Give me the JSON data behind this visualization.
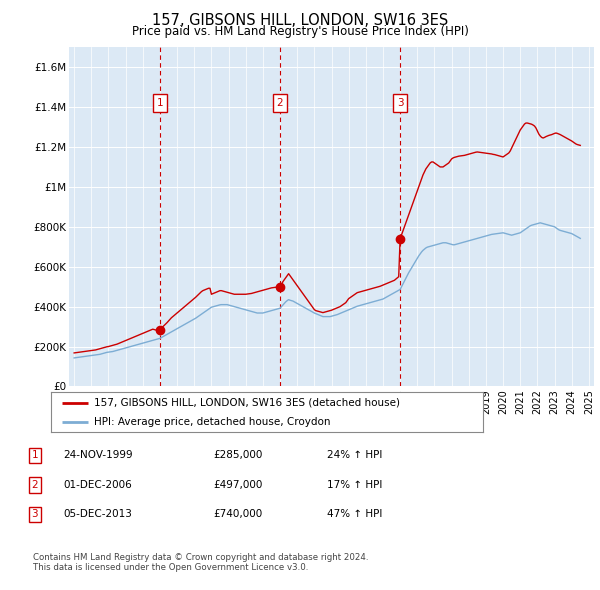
{
  "title": "157, GIBSONS HILL, LONDON, SW16 3ES",
  "subtitle": "Price paid vs. HM Land Registry's House Price Index (HPI)",
  "legend_line1": "157, GIBSONS HILL, LONDON, SW16 3ES (detached house)",
  "legend_line2": "HPI: Average price, detached house, Croydon",
  "footer1": "Contains HM Land Registry data © Crown copyright and database right 2024.",
  "footer2": "This data is licensed under the Open Government Licence v3.0.",
  "red_color": "#cc0000",
  "blue_color": "#7dadd4",
  "plot_bg": "#dce9f5",
  "grid_color": "#ffffff",
  "fig_bg": "#ffffff",
  "ylim": [
    0,
    1700000
  ],
  "yticks": [
    0,
    200000,
    400000,
    600000,
    800000,
    1000000,
    1200000,
    1400000,
    1600000
  ],
  "ytick_labels": [
    "£0",
    "£200K",
    "£400K",
    "£600K",
    "£800K",
    "£1M",
    "£1.2M",
    "£1.4M",
    "£1.6M"
  ],
  "purchases": [
    {
      "label": "1",
      "year": 2000.0,
      "value": 285000
    },
    {
      "label": "2",
      "year": 2007.0,
      "value": 497000
    },
    {
      "label": "3",
      "year": 2014.0,
      "value": 740000
    }
  ],
  "table_rows": [
    {
      "num": "1",
      "date": "24-NOV-1999",
      "price": "£285,000",
      "hpi": "24% ↑ HPI"
    },
    {
      "num": "2",
      "date": "01-DEC-2006",
      "price": "£497,000",
      "hpi": "17% ↑ HPI"
    },
    {
      "num": "3",
      "date": "05-DEC-2013",
      "price": "£740,000",
      "hpi": "47% ↑ HPI"
    }
  ],
  "red_x": [
    1995.0,
    1995.083,
    1995.167,
    1995.25,
    1995.333,
    1995.417,
    1995.5,
    1995.583,
    1995.667,
    1995.75,
    1995.833,
    1995.917,
    1996.0,
    1996.083,
    1996.167,
    1996.25,
    1996.333,
    1996.417,
    1996.5,
    1996.583,
    1996.667,
    1996.75,
    1996.833,
    1996.917,
    1997.0,
    1997.083,
    1997.167,
    1997.25,
    1997.333,
    1997.417,
    1997.5,
    1997.583,
    1997.667,
    1997.75,
    1997.833,
    1997.917,
    1998.0,
    1998.083,
    1998.167,
    1998.25,
    1998.333,
    1998.417,
    1998.5,
    1998.583,
    1998.667,
    1998.75,
    1998.833,
    1998.917,
    1999.0,
    1999.083,
    1999.167,
    1999.25,
    1999.333,
    1999.417,
    1999.5,
    1999.583,
    1999.667,
    1999.75,
    1999.833,
    1999.917,
    2000.0,
    2000.083,
    2000.167,
    2000.25,
    2000.333,
    2000.417,
    2000.5,
    2000.583,
    2000.667,
    2000.75,
    2000.833,
    2000.917,
    2001.0,
    2001.083,
    2001.167,
    2001.25,
    2001.333,
    2001.417,
    2001.5,
    2001.583,
    2001.667,
    2001.75,
    2001.833,
    2001.917,
    2002.0,
    2002.083,
    2002.167,
    2002.25,
    2002.333,
    2002.417,
    2002.5,
    2002.583,
    2002.667,
    2002.75,
    2002.833,
    2002.917,
    2003.0,
    2003.083,
    2003.167,
    2003.25,
    2003.333,
    2003.417,
    2003.5,
    2003.583,
    2003.667,
    2003.75,
    2003.833,
    2003.917,
    2004.0,
    2004.083,
    2004.167,
    2004.25,
    2004.333,
    2004.417,
    2004.5,
    2004.583,
    2004.667,
    2004.75,
    2004.833,
    2004.917,
    2005.0,
    2005.083,
    2005.167,
    2005.25,
    2005.333,
    2005.417,
    2005.5,
    2005.583,
    2005.667,
    2005.75,
    2005.833,
    2005.917,
    2006.0,
    2006.083,
    2006.167,
    2006.25,
    2006.333,
    2006.417,
    2006.5,
    2006.583,
    2006.667,
    2006.75,
    2006.833,
    2006.917,
    2007.0,
    2007.083,
    2007.167,
    2007.25,
    2007.333,
    2007.417,
    2007.5,
    2007.583,
    2007.667,
    2007.75,
    2007.833,
    2007.917,
    2008.0,
    2008.083,
    2008.167,
    2008.25,
    2008.333,
    2008.417,
    2008.5,
    2008.583,
    2008.667,
    2008.75,
    2008.833,
    2008.917,
    2009.0,
    2009.083,
    2009.167,
    2009.25,
    2009.333,
    2009.417,
    2009.5,
    2009.583,
    2009.667,
    2009.75,
    2009.833,
    2009.917,
    2010.0,
    2010.083,
    2010.167,
    2010.25,
    2010.333,
    2010.417,
    2010.5,
    2010.583,
    2010.667,
    2010.75,
    2010.833,
    2010.917,
    2011.0,
    2011.083,
    2011.167,
    2011.25,
    2011.333,
    2011.417,
    2011.5,
    2011.583,
    2011.667,
    2011.75,
    2011.833,
    2011.917,
    2012.0,
    2012.083,
    2012.167,
    2012.25,
    2012.333,
    2012.417,
    2012.5,
    2012.583,
    2012.667,
    2012.75,
    2012.833,
    2012.917,
    2013.0,
    2013.083,
    2013.167,
    2013.25,
    2013.333,
    2013.417,
    2013.5,
    2013.583,
    2013.667,
    2013.75,
    2013.833,
    2013.917,
    2014.0,
    2014.083,
    2014.167,
    2014.25,
    2014.333,
    2014.417,
    2014.5,
    2014.583,
    2014.667,
    2014.75,
    2014.833,
    2014.917,
    2015.0,
    2015.083,
    2015.167,
    2015.25,
    2015.333,
    2015.417,
    2015.5,
    2015.583,
    2015.667,
    2015.75,
    2015.833,
    2015.917,
    2016.0,
    2016.083,
    2016.167,
    2016.25,
    2016.333,
    2016.417,
    2016.5,
    2016.583,
    2016.667,
    2016.75,
    2016.833,
    2016.917,
    2017.0,
    2017.083,
    2017.167,
    2017.25,
    2017.333,
    2017.417,
    2017.5,
    2017.583,
    2017.667,
    2017.75,
    2017.833,
    2017.917,
    2018.0,
    2018.083,
    2018.167,
    2018.25,
    2018.333,
    2018.417,
    2018.5,
    2018.583,
    2018.667,
    2018.75,
    2018.833,
    2018.917,
    2019.0,
    2019.083,
    2019.167,
    2019.25,
    2019.333,
    2019.417,
    2019.5,
    2019.583,
    2019.667,
    2019.75,
    2019.833,
    2019.917,
    2020.0,
    2020.083,
    2020.167,
    2020.25,
    2020.333,
    2020.417,
    2020.5,
    2020.583,
    2020.667,
    2020.75,
    2020.833,
    2020.917,
    2021.0,
    2021.083,
    2021.167,
    2021.25,
    2021.333,
    2021.417,
    2021.5,
    2021.583,
    2021.667,
    2021.75,
    2021.833,
    2021.917,
    2022.0,
    2022.083,
    2022.167,
    2022.25,
    2022.333,
    2022.417,
    2022.5,
    2022.583,
    2022.667,
    2022.75,
    2022.833,
    2022.917,
    2023.0,
    2023.083,
    2023.167,
    2023.25,
    2023.333,
    2023.417,
    2023.5,
    2023.583,
    2023.667,
    2023.75,
    2023.833,
    2023.917,
    2024.0,
    2024.083,
    2024.167,
    2024.25,
    2024.333,
    2024.417,
    2024.5
  ],
  "red_y": [
    168000,
    169000,
    170000,
    171000,
    172000,
    173000,
    174000,
    175000,
    176000,
    177000,
    178000,
    179000,
    180000,
    181000,
    182000,
    183000,
    185000,
    187000,
    189000,
    191000,
    193000,
    195000,
    197000,
    199000,
    200000,
    202000,
    204000,
    206000,
    208000,
    210000,
    212000,
    215000,
    218000,
    221000,
    224000,
    227000,
    230000,
    233000,
    236000,
    239000,
    242000,
    245000,
    248000,
    251000,
    254000,
    257000,
    260000,
    263000,
    266000,
    269000,
    272000,
    275000,
    278000,
    281000,
    284000,
    287000,
    285000,
    283000,
    281000,
    279000,
    285000,
    292000,
    299000,
    306000,
    313000,
    320000,
    328000,
    336000,
    344000,
    350000,
    356000,
    362000,
    368000,
    374000,
    380000,
    386000,
    392000,
    398000,
    404000,
    410000,
    416000,
    422000,
    428000,
    434000,
    440000,
    447000,
    454000,
    461000,
    468000,
    475000,
    480000,
    483000,
    486000,
    489000,
    492000,
    492000,
    462000,
    465000,
    468000,
    471000,
    474000,
    477000,
    480000,
    480000,
    478000,
    476000,
    474000,
    472000,
    470000,
    468000,
    466000,
    464000,
    462000,
    462000,
    462000,
    462000,
    462000,
    462000,
    462000,
    462000,
    462000,
    463000,
    464000,
    465000,
    466000,
    468000,
    470000,
    472000,
    474000,
    476000,
    478000,
    480000,
    482000,
    484000,
    486000,
    488000,
    490000,
    492000,
    494000,
    495000,
    496000,
    497000,
    498000,
    499000,
    497000,
    510000,
    525000,
    535000,
    545000,
    555000,
    565000,
    555000,
    545000,
    535000,
    525000,
    515000,
    505000,
    495000,
    485000,
    475000,
    465000,
    455000,
    445000,
    435000,
    425000,
    415000,
    405000,
    395000,
    385000,
    380000,
    378000,
    376000,
    374000,
    372000,
    370000,
    372000,
    374000,
    376000,
    378000,
    380000,
    382000,
    385000,
    388000,
    391000,
    394000,
    397000,
    400000,
    405000,
    410000,
    415000,
    420000,
    430000,
    440000,
    445000,
    450000,
    455000,
    460000,
    465000,
    470000,
    472000,
    474000,
    476000,
    478000,
    480000,
    482000,
    484000,
    486000,
    488000,
    490000,
    492000,
    494000,
    496000,
    498000,
    500000,
    502000,
    505000,
    508000,
    511000,
    514000,
    517000,
    520000,
    523000,
    526000,
    529000,
    532000,
    538000,
    544000,
    550000,
    740000,
    760000,
    780000,
    800000,
    820000,
    840000,
    860000,
    880000,
    900000,
    920000,
    940000,
    960000,
    980000,
    1000000,
    1020000,
    1040000,
    1060000,
    1075000,
    1090000,
    1100000,
    1110000,
    1120000,
    1125000,
    1125000,
    1120000,
    1115000,
    1110000,
    1105000,
    1100000,
    1100000,
    1100000,
    1105000,
    1110000,
    1115000,
    1120000,
    1130000,
    1140000,
    1145000,
    1148000,
    1150000,
    1152000,
    1154000,
    1155000,
    1156000,
    1157000,
    1158000,
    1160000,
    1162000,
    1164000,
    1166000,
    1168000,
    1170000,
    1172000,
    1174000,
    1175000,
    1174000,
    1173000,
    1172000,
    1171000,
    1170000,
    1169000,
    1168000,
    1167000,
    1166000,
    1165000,
    1163000,
    1162000,
    1160000,
    1158000,
    1156000,
    1154000,
    1152000,
    1150000,
    1155000,
    1160000,
    1165000,
    1170000,
    1180000,
    1195000,
    1210000,
    1225000,
    1240000,
    1255000,
    1270000,
    1285000,
    1295000,
    1305000,
    1315000,
    1320000,
    1320000,
    1318000,
    1316000,
    1314000,
    1310000,
    1305000,
    1295000,
    1280000,
    1265000,
    1255000,
    1248000,
    1245000,
    1248000,
    1252000,
    1255000,
    1258000,
    1260000,
    1262000,
    1265000,
    1268000,
    1270000,
    1268000,
    1265000,
    1262000,
    1258000,
    1254000,
    1250000,
    1246000,
    1242000,
    1238000,
    1234000,
    1230000,
    1225000,
    1220000,
    1215000,
    1212000,
    1210000,
    1208000
  ],
  "blue_x": [
    1995.0,
    1995.083,
    1995.167,
    1995.25,
    1995.333,
    1995.417,
    1995.5,
    1995.583,
    1995.667,
    1995.75,
    1995.833,
    1995.917,
    1996.0,
    1996.083,
    1996.167,
    1996.25,
    1996.333,
    1996.417,
    1996.5,
    1996.583,
    1996.667,
    1996.75,
    1996.833,
    1996.917,
    1997.0,
    1997.083,
    1997.167,
    1997.25,
    1997.333,
    1997.417,
    1997.5,
    1997.583,
    1997.667,
    1997.75,
    1997.833,
    1997.917,
    1998.0,
    1998.083,
    1998.167,
    1998.25,
    1998.333,
    1998.417,
    1998.5,
    1998.583,
    1998.667,
    1998.75,
    1998.833,
    1998.917,
    1999.0,
    1999.083,
    1999.167,
    1999.25,
    1999.333,
    1999.417,
    1999.5,
    1999.583,
    1999.667,
    1999.75,
    1999.833,
    1999.917,
    2000.0,
    2000.083,
    2000.167,
    2000.25,
    2000.333,
    2000.417,
    2000.5,
    2000.583,
    2000.667,
    2000.75,
    2000.833,
    2000.917,
    2001.0,
    2001.083,
    2001.167,
    2001.25,
    2001.333,
    2001.417,
    2001.5,
    2001.583,
    2001.667,
    2001.75,
    2001.833,
    2001.917,
    2002.0,
    2002.083,
    2002.167,
    2002.25,
    2002.333,
    2002.417,
    2002.5,
    2002.583,
    2002.667,
    2002.75,
    2002.833,
    2002.917,
    2003.0,
    2003.083,
    2003.167,
    2003.25,
    2003.333,
    2003.417,
    2003.5,
    2003.583,
    2003.667,
    2003.75,
    2003.833,
    2003.917,
    2004.0,
    2004.083,
    2004.167,
    2004.25,
    2004.333,
    2004.417,
    2004.5,
    2004.583,
    2004.667,
    2004.75,
    2004.833,
    2004.917,
    2005.0,
    2005.083,
    2005.167,
    2005.25,
    2005.333,
    2005.417,
    2005.5,
    2005.583,
    2005.667,
    2005.75,
    2005.833,
    2005.917,
    2006.0,
    2006.083,
    2006.167,
    2006.25,
    2006.333,
    2006.417,
    2006.5,
    2006.583,
    2006.667,
    2006.75,
    2006.833,
    2006.917,
    2007.0,
    2007.083,
    2007.167,
    2007.25,
    2007.333,
    2007.417,
    2007.5,
    2007.583,
    2007.667,
    2007.75,
    2007.833,
    2007.917,
    2008.0,
    2008.083,
    2008.167,
    2008.25,
    2008.333,
    2008.417,
    2008.5,
    2008.583,
    2008.667,
    2008.75,
    2008.833,
    2008.917,
    2009.0,
    2009.083,
    2009.167,
    2009.25,
    2009.333,
    2009.417,
    2009.5,
    2009.583,
    2009.667,
    2009.75,
    2009.833,
    2009.917,
    2010.0,
    2010.083,
    2010.167,
    2010.25,
    2010.333,
    2010.417,
    2010.5,
    2010.583,
    2010.667,
    2010.75,
    2010.833,
    2010.917,
    2011.0,
    2011.083,
    2011.167,
    2011.25,
    2011.333,
    2011.417,
    2011.5,
    2011.583,
    2011.667,
    2011.75,
    2011.833,
    2011.917,
    2012.0,
    2012.083,
    2012.167,
    2012.25,
    2012.333,
    2012.417,
    2012.5,
    2012.583,
    2012.667,
    2012.75,
    2012.833,
    2012.917,
    2013.0,
    2013.083,
    2013.167,
    2013.25,
    2013.333,
    2013.417,
    2013.5,
    2013.583,
    2013.667,
    2013.75,
    2013.833,
    2013.917,
    2014.0,
    2014.083,
    2014.167,
    2014.25,
    2014.333,
    2014.417,
    2014.5,
    2014.583,
    2014.667,
    2014.75,
    2014.833,
    2014.917,
    2015.0,
    2015.083,
    2015.167,
    2015.25,
    2015.333,
    2015.417,
    2015.5,
    2015.583,
    2015.667,
    2015.75,
    2015.833,
    2015.917,
    2016.0,
    2016.083,
    2016.167,
    2016.25,
    2016.333,
    2016.417,
    2016.5,
    2016.583,
    2016.667,
    2016.75,
    2016.833,
    2016.917,
    2017.0,
    2017.083,
    2017.167,
    2017.25,
    2017.333,
    2017.417,
    2017.5,
    2017.583,
    2017.667,
    2017.75,
    2017.833,
    2017.917,
    2018.0,
    2018.083,
    2018.167,
    2018.25,
    2018.333,
    2018.417,
    2018.5,
    2018.583,
    2018.667,
    2018.75,
    2018.833,
    2018.917,
    2019.0,
    2019.083,
    2019.167,
    2019.25,
    2019.333,
    2019.417,
    2019.5,
    2019.583,
    2019.667,
    2019.75,
    2019.833,
    2019.917,
    2020.0,
    2020.083,
    2020.167,
    2020.25,
    2020.333,
    2020.417,
    2020.5,
    2020.583,
    2020.667,
    2020.75,
    2020.833,
    2020.917,
    2021.0,
    2021.083,
    2021.167,
    2021.25,
    2021.333,
    2021.417,
    2021.5,
    2021.583,
    2021.667,
    2021.75,
    2021.833,
    2021.917,
    2022.0,
    2022.083,
    2022.167,
    2022.25,
    2022.333,
    2022.417,
    2022.5,
    2022.583,
    2022.667,
    2022.75,
    2022.833,
    2022.917,
    2023.0,
    2023.083,
    2023.167,
    2023.25,
    2023.333,
    2023.417,
    2023.5,
    2023.583,
    2023.667,
    2023.75,
    2023.833,
    2023.917,
    2024.0,
    2024.083,
    2024.167,
    2024.25,
    2024.333,
    2024.417,
    2024.5
  ],
  "blue_y": [
    143000,
    144000,
    145000,
    146000,
    147000,
    148000,
    149000,
    150000,
    151000,
    152000,
    153000,
    154000,
    155000,
    156000,
    157000,
    158000,
    159000,
    160000,
    161000,
    163000,
    165000,
    167000,
    169000,
    171000,
    172000,
    173000,
    174000,
    175000,
    177000,
    179000,
    181000,
    183000,
    185000,
    187000,
    189000,
    191000,
    193000,
    195000,
    197000,
    199000,
    201000,
    203000,
    205000,
    207000,
    209000,
    211000,
    213000,
    215000,
    217000,
    219000,
    221000,
    223000,
    225000,
    227000,
    229000,
    231000,
    233000,
    235000,
    237000,
    239000,
    241000,
    245000,
    249000,
    253000,
    257000,
    261000,
    265000,
    269000,
    273000,
    277000,
    281000,
    285000,
    289000,
    293000,
    297000,
    301000,
    305000,
    309000,
    313000,
    317000,
    321000,
    325000,
    329000,
    333000,
    337000,
    342000,
    347000,
    352000,
    357000,
    362000,
    367000,
    372000,
    377000,
    382000,
    387000,
    392000,
    397000,
    399000,
    401000,
    403000,
    405000,
    407000,
    409000,
    410000,
    410000,
    410000,
    410000,
    410000,
    408000,
    406000,
    404000,
    402000,
    400000,
    398000,
    396000,
    394000,
    392000,
    390000,
    388000,
    386000,
    384000,
    382000,
    380000,
    378000,
    376000,
    374000,
    372000,
    370000,
    368000,
    368000,
    368000,
    368000,
    368000,
    370000,
    372000,
    374000,
    376000,
    378000,
    380000,
    382000,
    384000,
    386000,
    388000,
    390000,
    392000,
    400000,
    408000,
    416000,
    424000,
    430000,
    435000,
    432000,
    430000,
    428000,
    424000,
    420000,
    416000,
    412000,
    408000,
    404000,
    400000,
    396000,
    392000,
    388000,
    384000,
    380000,
    376000,
    372000,
    368000,
    365000,
    362000,
    359000,
    356000,
    353000,
    350000,
    350000,
    350000,
    350000,
    350000,
    350000,
    352000,
    354000,
    356000,
    358000,
    360000,
    363000,
    366000,
    369000,
    372000,
    375000,
    378000,
    381000,
    384000,
    387000,
    390000,
    393000,
    396000,
    399000,
    402000,
    404000,
    406000,
    408000,
    410000,
    412000,
    414000,
    416000,
    418000,
    420000,
    422000,
    424000,
    426000,
    428000,
    430000,
    432000,
    434000,
    436000,
    438000,
    442000,
    446000,
    450000,
    454000,
    458000,
    462000,
    466000,
    470000,
    474000,
    478000,
    482000,
    486000,
    500000,
    514000,
    528000,
    542000,
    556000,
    570000,
    582000,
    594000,
    606000,
    618000,
    630000,
    642000,
    654000,
    664000,
    674000,
    682000,
    688000,
    694000,
    698000,
    700000,
    702000,
    704000,
    706000,
    708000,
    710000,
    712000,
    714000,
    716000,
    718000,
    720000,
    720000,
    720000,
    718000,
    716000,
    714000,
    712000,
    710000,
    710000,
    712000,
    714000,
    716000,
    718000,
    720000,
    722000,
    724000,
    726000,
    728000,
    730000,
    732000,
    734000,
    736000,
    738000,
    740000,
    742000,
    744000,
    746000,
    748000,
    750000,
    752000,
    754000,
    756000,
    758000,
    760000,
    762000,
    763000,
    764000,
    765000,
    766000,
    767000,
    768000,
    769000,
    770000,
    768000,
    766000,
    764000,
    762000,
    760000,
    758000,
    760000,
    762000,
    764000,
    766000,
    768000,
    770000,
    775000,
    780000,
    785000,
    790000,
    795000,
    800000,
    805000,
    808000,
    810000,
    812000,
    814000,
    816000,
    818000,
    820000,
    818000,
    816000,
    814000,
    812000,
    810000,
    808000,
    806000,
    804000,
    802000,
    800000,
    795000,
    790000,
    785000,
    782000,
    780000,
    778000,
    776000,
    774000,
    772000,
    770000,
    768000,
    766000,
    762000,
    758000,
    754000,
    750000,
    746000,
    742000
  ]
}
